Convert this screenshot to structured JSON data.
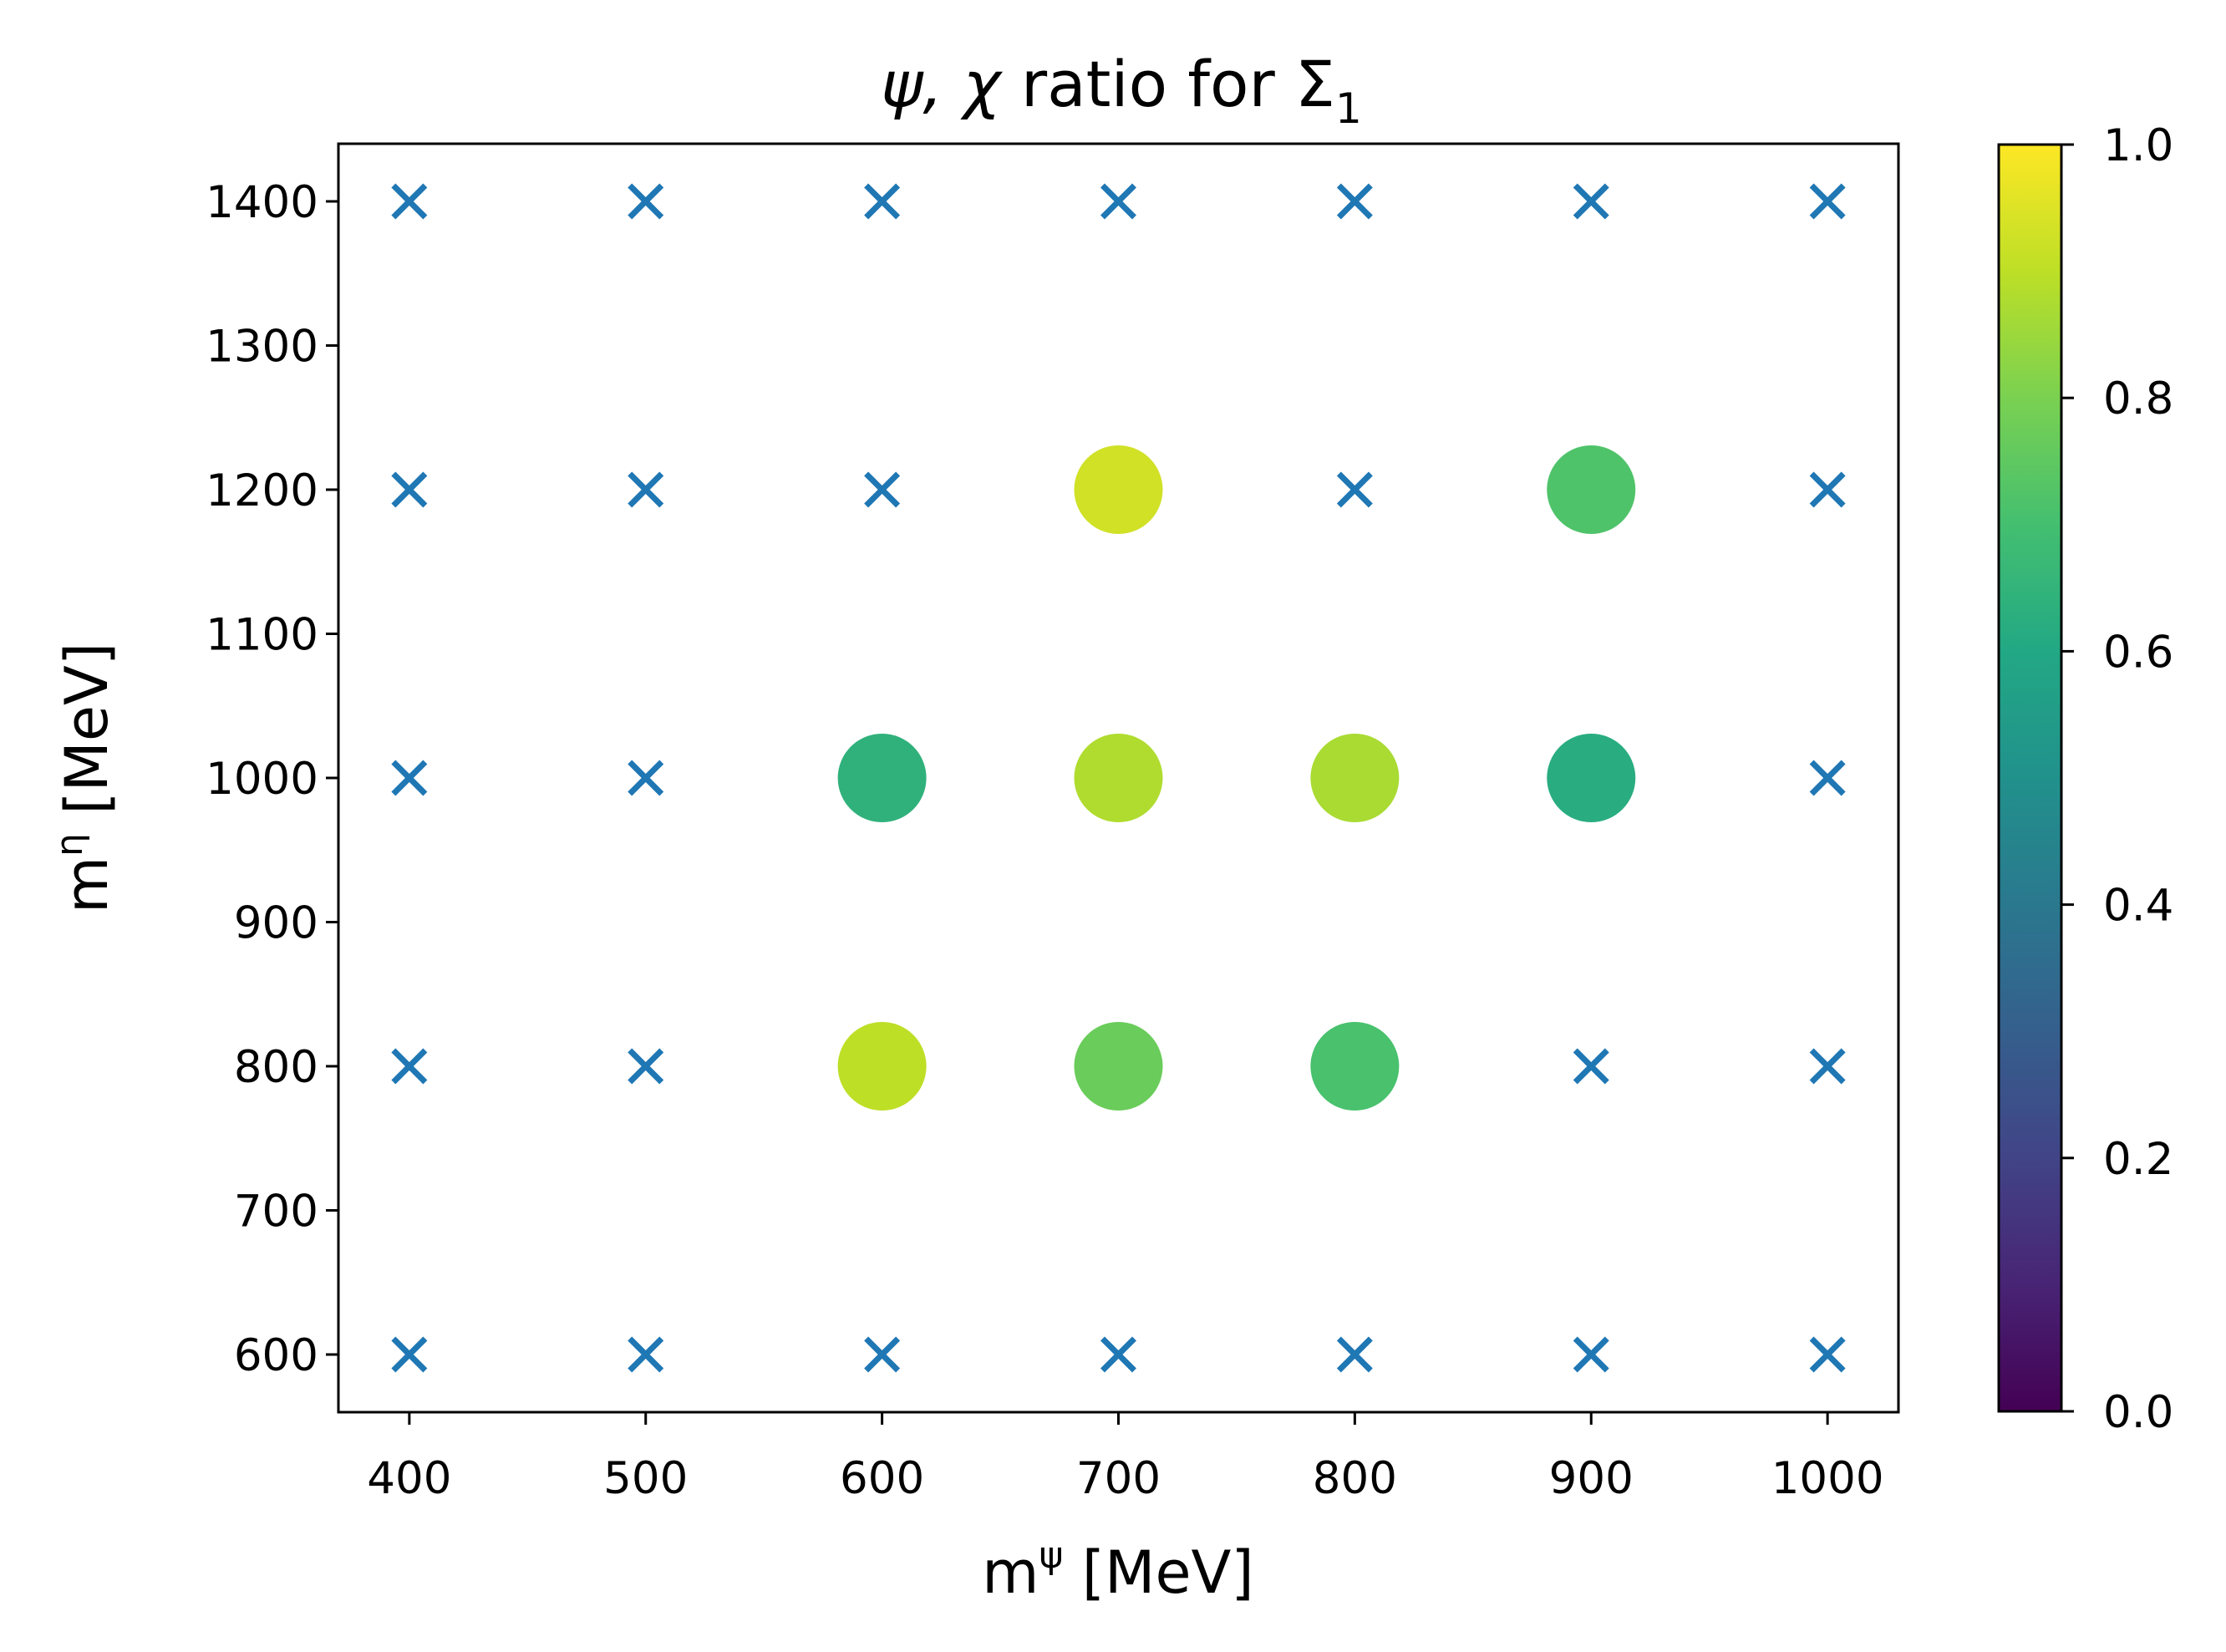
{
  "chart_data": {
    "type": "scatter",
    "title_parts": {
      "greek": "ψ, χ",
      "middle": " ratio for ",
      "sigma": "Σ",
      "subscript": "1"
    },
    "xlabel_parts": {
      "base": "m",
      "sup": "ψ",
      "unit": " [MeV]"
    },
    "ylabel_parts": {
      "base": "m",
      "sup": "η",
      "unit": " [MeV]"
    },
    "xlim": [
      370,
      1030
    ],
    "ylim": [
      560,
      1440
    ],
    "xticks": [
      400,
      500,
      600,
      700,
      800,
      900,
      1000
    ],
    "yticks": [
      600,
      700,
      800,
      900,
      1000,
      1100,
      1200,
      1300,
      1400
    ],
    "grid": false,
    "colormap": "viridis",
    "colorbar": {
      "range": [
        0.0,
        1.0
      ],
      "ticks": [
        "0.0",
        "0.2",
        "0.4",
        "0.6",
        "0.8",
        "1.0"
      ]
    },
    "cross_color": "#1f77b4",
    "crosses": [
      [
        400,
        600
      ],
      [
        500,
        600
      ],
      [
        600,
        600
      ],
      [
        700,
        600
      ],
      [
        800,
        600
      ],
      [
        900,
        600
      ],
      [
        1000,
        600
      ],
      [
        400,
        800
      ],
      [
        500,
        800
      ],
      [
        900,
        800
      ],
      [
        1000,
        800
      ],
      [
        400,
        1000
      ],
      [
        500,
        1000
      ],
      [
        1000,
        1000
      ],
      [
        400,
        1200
      ],
      [
        500,
        1200
      ],
      [
        600,
        1200
      ],
      [
        800,
        1200
      ],
      [
        1000,
        1200
      ],
      [
        400,
        1400
      ],
      [
        500,
        1400
      ],
      [
        600,
        1400
      ],
      [
        700,
        1400
      ],
      [
        800,
        1400
      ],
      [
        900,
        1400
      ],
      [
        1000,
        1400
      ]
    ],
    "points": [
      {
        "x": 600,
        "y": 800,
        "value": 0.9
      },
      {
        "x": 700,
        "y": 800,
        "value": 0.77
      },
      {
        "x": 800,
        "y": 800,
        "value": 0.71
      },
      {
        "x": 600,
        "y": 1000,
        "value": 0.64
      },
      {
        "x": 700,
        "y": 1000,
        "value": 0.88
      },
      {
        "x": 800,
        "y": 1000,
        "value": 0.87
      },
      {
        "x": 900,
        "y": 1000,
        "value": 0.62
      },
      {
        "x": 700,
        "y": 1200,
        "value": 0.93
      },
      {
        "x": 900,
        "y": 1200,
        "value": 0.72
      }
    ]
  }
}
